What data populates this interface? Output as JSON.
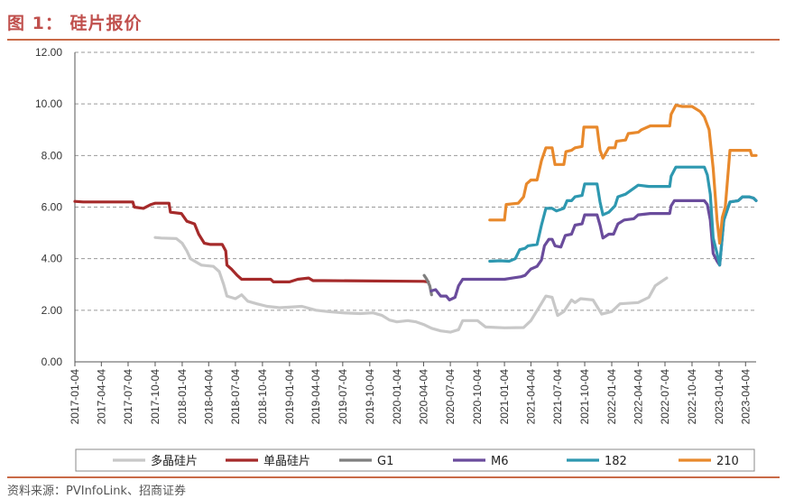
{
  "title": "图 1：  硅片报价",
  "source": "资料来源：PVInfoLink、招商证券",
  "chart_data": {
    "type": "line",
    "ylim": [
      0,
      12
    ],
    "yticks": [
      "0.00",
      "2.00",
      "4.00",
      "6.00",
      "8.00",
      "10.00",
      "12.00"
    ],
    "xlim": [
      "2017-01-04",
      "2023-05-10"
    ],
    "xticks": [
      "2017-01-04",
      "2017-04-04",
      "2017-07-04",
      "2017-10-04",
      "2018-01-04",
      "2018-04-04",
      "2018-07-04",
      "2018-10-04",
      "2019-01-04",
      "2019-04-04",
      "2019-07-04",
      "2019-10-04",
      "2020-01-04",
      "2020-04-04",
      "2020-07-04",
      "2020-10-04",
      "2021-01-04",
      "2021-04-04",
      "2021-07-04",
      "2021-10-04",
      "2022-01-04",
      "2022-04-04",
      "2022-07-04",
      "2022-10-04",
      "2023-01-04",
      "2023-04-04"
    ],
    "grid": "horizontal dashed",
    "legend": "bottom",
    "series": [
      {
        "name": "多晶硅片",
        "color": "#c8c8c8",
        "points": [
          [
            "2017-10-04",
            4.82
          ],
          [
            "2017-10-25",
            4.8
          ],
          [
            "2017-12-15",
            4.78
          ],
          [
            "2018-01-04",
            4.6
          ],
          [
            "2018-01-20",
            4.3
          ],
          [
            "2018-02-01",
            4.0
          ],
          [
            "2018-03-10",
            3.75
          ],
          [
            "2018-04-20",
            3.7
          ],
          [
            "2018-05-10",
            3.5
          ],
          [
            "2018-05-25",
            3.0
          ],
          [
            "2018-06-05",
            2.55
          ],
          [
            "2018-07-04",
            2.45
          ],
          [
            "2018-07-25",
            2.6
          ],
          [
            "2018-08-15",
            2.35
          ],
          [
            "2018-09-15",
            2.25
          ],
          [
            "2018-10-20",
            2.15
          ],
          [
            "2018-12-01",
            2.1
          ],
          [
            "2019-01-04",
            2.12
          ],
          [
            "2019-02-15",
            2.15
          ],
          [
            "2019-04-04",
            2.0
          ],
          [
            "2019-05-15",
            1.95
          ],
          [
            "2019-07-04",
            1.9
          ],
          [
            "2019-09-01",
            1.87
          ],
          [
            "2019-10-15",
            1.9
          ],
          [
            "2019-11-15",
            1.8
          ],
          [
            "2019-12-10",
            1.62
          ],
          [
            "2020-01-04",
            1.55
          ],
          [
            "2020-02-10",
            1.6
          ],
          [
            "2020-03-10",
            1.55
          ],
          [
            "2020-04-04",
            1.45
          ],
          [
            "2020-05-01",
            1.3
          ],
          [
            "2020-06-01",
            1.2
          ],
          [
            "2020-07-04",
            1.15
          ],
          [
            "2020-08-01",
            1.25
          ],
          [
            "2020-08-15",
            1.6
          ],
          [
            "2020-10-04",
            1.6
          ],
          [
            "2020-11-01",
            1.35
          ],
          [
            "2021-01-04",
            1.32
          ],
          [
            "2021-03-10",
            1.33
          ],
          [
            "2021-04-04",
            1.6
          ],
          [
            "2021-05-01",
            2.1
          ],
          [
            "2021-05-25",
            2.55
          ],
          [
            "2021-06-15",
            2.5
          ],
          [
            "2021-07-04",
            1.8
          ],
          [
            "2021-07-25",
            1.95
          ],
          [
            "2021-08-20",
            2.4
          ],
          [
            "2021-09-01",
            2.3
          ],
          [
            "2021-09-20",
            2.45
          ],
          [
            "2021-11-01",
            2.4
          ],
          [
            "2021-12-01",
            1.85
          ],
          [
            "2022-01-04",
            1.95
          ],
          [
            "2022-02-01",
            2.25
          ],
          [
            "2022-04-04",
            2.3
          ],
          [
            "2022-05-10",
            2.5
          ],
          [
            "2022-06-01",
            2.95
          ],
          [
            "2022-06-20",
            3.1
          ],
          [
            "2022-07-10",
            3.25
          ]
        ]
      },
      {
        "name": "单晶硅片",
        "color": "#a52a2a",
        "points": [
          [
            "2017-01-04",
            6.22
          ],
          [
            "2017-02-01",
            6.2
          ],
          [
            "2017-07-20",
            6.2
          ],
          [
            "2017-07-25",
            6.0
          ],
          [
            "2017-08-25",
            5.95
          ],
          [
            "2017-09-20",
            6.1
          ],
          [
            "2017-10-04",
            6.15
          ],
          [
            "2017-11-20",
            6.15
          ],
          [
            "2017-11-25",
            5.8
          ],
          [
            "2018-01-01",
            5.75
          ],
          [
            "2018-01-20",
            5.45
          ],
          [
            "2018-02-15",
            5.35
          ],
          [
            "2018-03-01",
            4.95
          ],
          [
            "2018-03-20",
            4.6
          ],
          [
            "2018-04-10",
            4.55
          ],
          [
            "2018-05-20",
            4.55
          ],
          [
            "2018-06-01",
            4.3
          ],
          [
            "2018-06-05",
            3.75
          ],
          [
            "2018-06-20",
            3.6
          ],
          [
            "2018-07-10",
            3.35
          ],
          [
            "2018-07-25",
            3.2
          ],
          [
            "2018-11-01",
            3.2
          ],
          [
            "2018-11-10",
            3.1
          ],
          [
            "2019-01-04",
            3.1
          ],
          [
            "2019-02-01",
            3.2
          ],
          [
            "2019-03-10",
            3.25
          ],
          [
            "2019-03-25",
            3.15
          ],
          [
            "2019-05-01",
            3.15
          ],
          [
            "2020-04-04",
            3.12
          ],
          [
            "2020-04-20",
            3.1
          ]
        ]
      },
      {
        "name": "G1",
        "color": "#7f7f7f",
        "points": [
          [
            "2020-04-06",
            3.35
          ],
          [
            "2020-04-15",
            3.2
          ],
          [
            "2020-04-25",
            2.95
          ],
          [
            "2020-05-01",
            2.6
          ]
        ]
      },
      {
        "name": "M6",
        "color": "#6a4c9c",
        "points": [
          [
            "2020-04-30",
            2.75
          ],
          [
            "2020-05-15",
            2.8
          ],
          [
            "2020-06-01",
            2.55
          ],
          [
            "2020-06-20",
            2.55
          ],
          [
            "2020-07-01",
            2.4
          ],
          [
            "2020-07-20",
            2.5
          ],
          [
            "2020-08-01",
            2.95
          ],
          [
            "2020-08-15",
            3.2
          ],
          [
            "2020-10-04",
            3.2
          ],
          [
            "2021-01-04",
            3.2
          ],
          [
            "2021-02-01",
            3.25
          ],
          [
            "2021-03-01",
            3.3
          ],
          [
            "2021-03-15",
            3.35
          ],
          [
            "2021-04-04",
            3.6
          ],
          [
            "2021-04-25",
            3.7
          ],
          [
            "2021-05-10",
            3.95
          ],
          [
            "2021-05-20",
            4.5
          ],
          [
            "2021-06-04",
            4.75
          ],
          [
            "2021-06-15",
            4.75
          ],
          [
            "2021-06-25",
            4.5
          ],
          [
            "2021-07-15",
            4.45
          ],
          [
            "2021-07-30",
            4.9
          ],
          [
            "2021-08-20",
            4.95
          ],
          [
            "2021-09-01",
            5.3
          ],
          [
            "2021-09-25",
            5.35
          ],
          [
            "2021-10-04",
            5.7
          ],
          [
            "2021-11-15",
            5.7
          ],
          [
            "2021-11-25",
            5.3
          ],
          [
            "2021-12-05",
            4.8
          ],
          [
            "2021-12-25",
            4.95
          ],
          [
            "2022-01-10",
            4.95
          ],
          [
            "2022-01-25",
            5.35
          ],
          [
            "2022-02-15",
            5.5
          ],
          [
            "2022-03-20",
            5.55
          ],
          [
            "2022-04-04",
            5.7
          ],
          [
            "2022-05-15",
            5.75
          ],
          [
            "2022-07-20",
            5.75
          ],
          [
            "2022-07-25",
            6.05
          ],
          [
            "2022-08-05",
            6.25
          ],
          [
            "2022-11-15",
            6.25
          ],
          [
            "2022-11-25",
            6.1
          ],
          [
            "2022-12-05",
            5.5
          ],
          [
            "2022-12-15",
            4.2
          ],
          [
            "2022-12-28",
            3.9
          ],
          [
            "2023-01-06",
            3.75
          ],
          [
            "2023-01-20",
            5.5
          ],
          [
            "2023-02-10",
            6.2
          ],
          [
            "2023-03-10",
            6.25
          ],
          [
            "2023-03-25",
            6.4
          ],
          [
            "2023-04-15",
            6.4
          ],
          [
            "2023-05-01",
            6.35
          ],
          [
            "2023-05-10",
            6.25
          ]
        ]
      },
      {
        "name": "182",
        "color": "#2e98b0",
        "points": [
          [
            "2020-11-15",
            3.9
          ],
          [
            "2020-12-20",
            3.92
          ],
          [
            "2021-01-20",
            3.9
          ],
          [
            "2021-02-10",
            4.0
          ],
          [
            "2021-02-25",
            4.35
          ],
          [
            "2021-03-15",
            4.4
          ],
          [
            "2021-03-25",
            4.5
          ],
          [
            "2021-04-25",
            4.55
          ],
          [
            "2021-05-10",
            5.3
          ],
          [
            "2021-05-25",
            5.95
          ],
          [
            "2021-06-15",
            5.95
          ],
          [
            "2021-06-30",
            5.85
          ],
          [
            "2021-07-25",
            5.95
          ],
          [
            "2021-08-05",
            6.25
          ],
          [
            "2021-08-20",
            6.25
          ],
          [
            "2021-09-01",
            6.4
          ],
          [
            "2021-09-25",
            6.45
          ],
          [
            "2021-10-04",
            6.9
          ],
          [
            "2021-11-15",
            6.9
          ],
          [
            "2021-11-25",
            6.2
          ],
          [
            "2021-12-05",
            5.7
          ],
          [
            "2021-12-25",
            5.8
          ],
          [
            "2022-01-15",
            6.05
          ],
          [
            "2022-01-25",
            6.4
          ],
          [
            "2022-02-20",
            6.5
          ],
          [
            "2022-04-04",
            6.85
          ],
          [
            "2022-05-10",
            6.8
          ],
          [
            "2022-07-20",
            6.8
          ],
          [
            "2022-07-25",
            7.2
          ],
          [
            "2022-08-10",
            7.55
          ],
          [
            "2022-11-15",
            7.55
          ],
          [
            "2022-11-25",
            7.25
          ],
          [
            "2022-12-05",
            6.5
          ],
          [
            "2022-12-15",
            4.8
          ],
          [
            "2022-12-28",
            4.2
          ],
          [
            "2023-01-06",
            3.75
          ],
          [
            "2023-01-20",
            5.5
          ],
          [
            "2023-02-10",
            6.2
          ],
          [
            "2023-03-10",
            6.25
          ],
          [
            "2023-03-25",
            6.4
          ],
          [
            "2023-04-15",
            6.4
          ],
          [
            "2023-05-01",
            6.35
          ],
          [
            "2023-05-10",
            6.25
          ]
        ]
      },
      {
        "name": "210",
        "color": "#e8892c",
        "points": [
          [
            "2020-11-15",
            5.5
          ],
          [
            "2021-01-04",
            5.5
          ],
          [
            "2021-01-10",
            6.1
          ],
          [
            "2021-02-20",
            6.15
          ],
          [
            "2021-03-10",
            6.4
          ],
          [
            "2021-03-20",
            6.9
          ],
          [
            "2021-04-04",
            7.05
          ],
          [
            "2021-04-25",
            7.05
          ],
          [
            "2021-05-10",
            7.8
          ],
          [
            "2021-05-25",
            8.3
          ],
          [
            "2021-06-15",
            8.3
          ],
          [
            "2021-06-25",
            7.65
          ],
          [
            "2021-07-25",
            7.65
          ],
          [
            "2021-08-01",
            8.15
          ],
          [
            "2021-08-20",
            8.2
          ],
          [
            "2021-09-01",
            8.3
          ],
          [
            "2021-09-25",
            8.35
          ],
          [
            "2021-10-01",
            9.1
          ],
          [
            "2021-11-15",
            9.1
          ],
          [
            "2021-11-25",
            8.2
          ],
          [
            "2021-12-05",
            7.9
          ],
          [
            "2021-12-25",
            8.3
          ],
          [
            "2022-01-15",
            8.3
          ],
          [
            "2022-01-20",
            8.55
          ],
          [
            "2022-02-20",
            8.6
          ],
          [
            "2022-03-01",
            8.85
          ],
          [
            "2022-04-04",
            8.9
          ],
          [
            "2022-04-15",
            9.0
          ],
          [
            "2022-05-15",
            9.15
          ],
          [
            "2022-07-20",
            9.15
          ],
          [
            "2022-07-25",
            9.6
          ],
          [
            "2022-08-10",
            9.95
          ],
          [
            "2022-09-01",
            9.9
          ],
          [
            "2022-10-04",
            9.9
          ],
          [
            "2022-11-01",
            9.7
          ],
          [
            "2022-11-15",
            9.5
          ],
          [
            "2022-12-01",
            9.0
          ],
          [
            "2022-12-15",
            7.5
          ],
          [
            "2022-12-28",
            5.5
          ],
          [
            "2023-01-06",
            4.6
          ],
          [
            "2023-01-15",
            5.6
          ],
          [
            "2023-01-25",
            6.0
          ],
          [
            "2023-02-10",
            8.2
          ],
          [
            "2023-04-20",
            8.2
          ],
          [
            "2023-04-25",
            8.0
          ],
          [
            "2023-05-10",
            8.0
          ]
        ]
      }
    ]
  }
}
